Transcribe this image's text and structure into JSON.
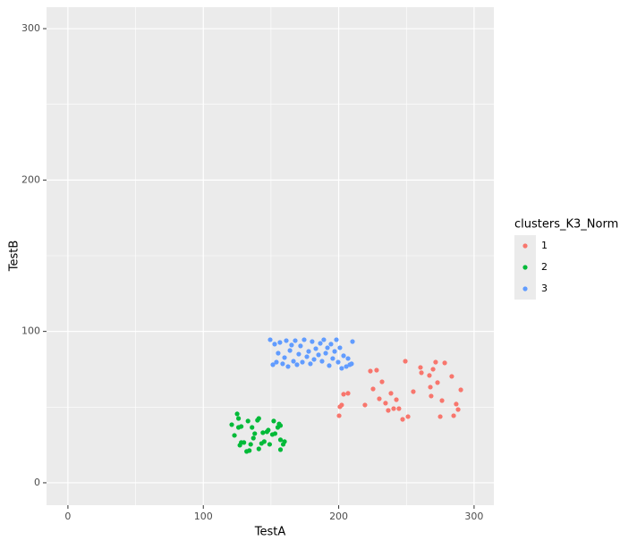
{
  "chart_data": {
    "type": "scatter",
    "x_label": "TestA",
    "y_label": "TestB",
    "legend_title": "clusters_K3_Norm",
    "xlim": [
      -15.8,
      314.6
    ],
    "ylim": [
      -14.8,
      314.2
    ],
    "xticks": [
      0,
      100,
      200,
      300
    ],
    "yticks": [
      0,
      100,
      200,
      300
    ],
    "xminor": [
      50,
      150,
      250
    ],
    "yminor": [
      50,
      150,
      250
    ],
    "grid": true,
    "legend": "right",
    "background": "#ebebeb",
    "series": [
      {
        "name": "1",
        "color": "#f8766d",
        "x": [
          200.3,
          200.9,
          202.2,
          203.6,
          206.9,
          219.4,
          223.4,
          225.4,
          228,
          230,
          232,
          234.6,
          236.6,
          238.6,
          240.6,
          242.6,
          244.5,
          247.2,
          249.2,
          251.2,
          255.1,
          260.4,
          261.1,
          267,
          267.7,
          268.3,
          269.7,
          271.6,
          273,
          275,
          276.3,
          278.3,
          283.5,
          284.9,
          286.8,
          288.2,
          290.2
        ],
        "values": [
          44.3,
          50.2,
          51.4,
          58.5,
          59.1,
          51.4,
          73.8,
          62,
          74.4,
          55.5,
          66.7,
          52.6,
          47.8,
          59.1,
          49,
          54.9,
          49,
          41.9,
          80.3,
          43.7,
          60.2,
          76.2,
          72.7,
          70.9,
          63.2,
          57.3,
          75,
          79.7,
          66.2,
          43.7,
          54.3,
          79.2,
          70.3,
          44.3,
          52,
          48.4,
          61.4
        ]
      },
      {
        "name": "2",
        "color": "#00ba38",
        "x": [
          121,
          123,
          125,
          126,
          127,
          128,
          130,
          132,
          133,
          135,
          136,
          138,
          140,
          141,
          143,
          144,
          145,
          147,
          148,
          149,
          151,
          152,
          153,
          155,
          157,
          157,
          159,
          160,
          157,
          156,
          141,
          134,
          128,
          126,
          137
        ],
        "values": [
          38.4,
          31.3,
          45.5,
          36.6,
          24.8,
          37.2,
          26.6,
          20.7,
          40.8,
          25.4,
          36.6,
          32.5,
          41.3,
          42.5,
          26,
          33.1,
          27.2,
          33.7,
          34.8,
          25.4,
          31.9,
          40.8,
          32.5,
          36.6,
          28.4,
          21.9,
          25.4,
          27.2,
          37.8,
          38.9,
          22.4,
          21.3,
          26.6,
          42.5,
          29.5
        ]
      },
      {
        "name": "3",
        "color": "#619cff",
        "x": [
          149.4,
          151.4,
          152.7,
          154,
          155.3,
          156.6,
          158.6,
          160,
          161.3,
          162.6,
          164,
          165.2,
          166.6,
          167.9,
          169.2,
          170.5,
          171.8,
          173.2,
          174.5,
          176.5,
          177.8,
          179.1,
          180.4,
          181.8,
          183.1,
          185.1,
          186.4,
          187.7,
          189,
          190.4,
          191.7,
          193,
          194.3,
          195.6,
          197,
          198.3,
          199.6,
          200.9,
          202.2,
          203.6,
          205.6,
          206.9,
          208.2,
          209.5,
          210.2
        ],
        "values": [
          94.5,
          78,
          91.6,
          79.7,
          85.6,
          92.7,
          78.6,
          82.7,
          93.9,
          76.8,
          87.4,
          91,
          80.3,
          93.9,
          78,
          85,
          90.4,
          79.7,
          94.5,
          83.3,
          86.8,
          78.6,
          93.3,
          81.5,
          88.6,
          84.5,
          92.1,
          80.3,
          94.5,
          85.6,
          89.2,
          77.4,
          91.6,
          82.1,
          86.8,
          94.5,
          79.7,
          89.2,
          75.6,
          83.9,
          76.8,
          82.1,
          78,
          78.6,
          93.3
        ]
      }
    ]
  }
}
